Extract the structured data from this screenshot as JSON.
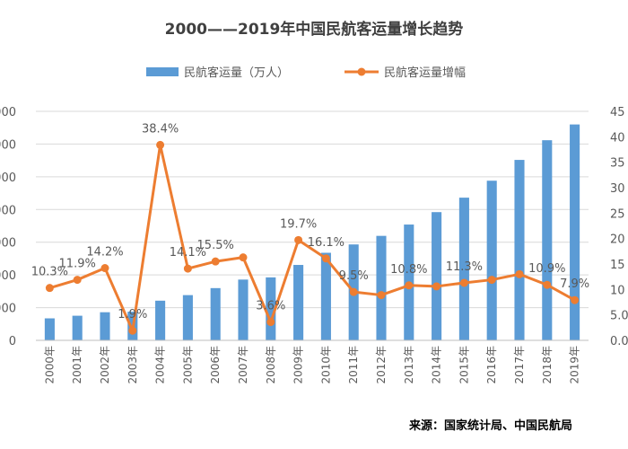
{
  "chart_data": {
    "type": "bar",
    "title": "2000——2019年中国民航客运量增长趋势",
    "categories": [
      "2000年",
      "2001年",
      "2002年",
      "2003年",
      "2004年",
      "2005年",
      "2006年",
      "2007年",
      "2008年",
      "2009年",
      "2010年",
      "2011年",
      "2012年",
      "2013年",
      "2014年",
      "2015年",
      "2016年",
      "2017年",
      "2018年",
      "2019年"
    ],
    "series": [
      {
        "name": "民航客运量（万人）",
        "kind": "bar",
        "axis": "left",
        "color": "#5b9bd5",
        "values": [
          6722,
          7524,
          8594,
          8759,
          12123,
          13827,
          15968,
          18576,
          19251,
          23052,
          26769,
          29317,
          31936,
          35397,
          39195,
          43618,
          48796,
          55156,
          61174,
          65993
        ]
      },
      {
        "name": "民航客运量增幅",
        "kind": "line",
        "axis": "right",
        "color": "#ed7d31",
        "values": [
          10.3,
          11.9,
          14.2,
          1.9,
          38.4,
          14.1,
          15.5,
          16.3,
          3.6,
          19.7,
          16.1,
          9.5,
          8.9,
          10.8,
          10.6,
          11.3,
          11.9,
          13.0,
          10.9,
          7.9
        ],
        "labels": [
          "10.3%",
          "11.9%",
          "14.2%",
          "1.9%",
          "38.4%",
          "14.1%",
          "15.5%",
          "",
          "3.6%",
          "19.7%",
          "16.1%",
          "9.5%",
          "",
          "10.8%",
          "",
          "11.3%",
          "",
          "",
          "10.9%",
          "7.9%"
        ]
      }
    ],
    "y_left": {
      "range": [
        0,
        70000
      ],
      "ticks": [
        0,
        10000,
        20000,
        30000,
        40000,
        50000,
        60000,
        70000
      ],
      "tick_labels": [
        "0",
        "000",
        "000",
        "000",
        "000",
        "000",
        "000",
        "000"
      ]
    },
    "y_right": {
      "range": [
        0,
        45
      ],
      "ticks": [
        0,
        5,
        10,
        15,
        20,
        25,
        30,
        35,
        40,
        45
      ],
      "tick_labels": [
        "0.0",
        "5.0",
        "10",
        "15",
        "20",
        "25",
        "30",
        "35",
        "40",
        "45"
      ]
    },
    "legend_position": "top-center",
    "grid": true,
    "source": "来源：国家统计局、中国民航局"
  }
}
